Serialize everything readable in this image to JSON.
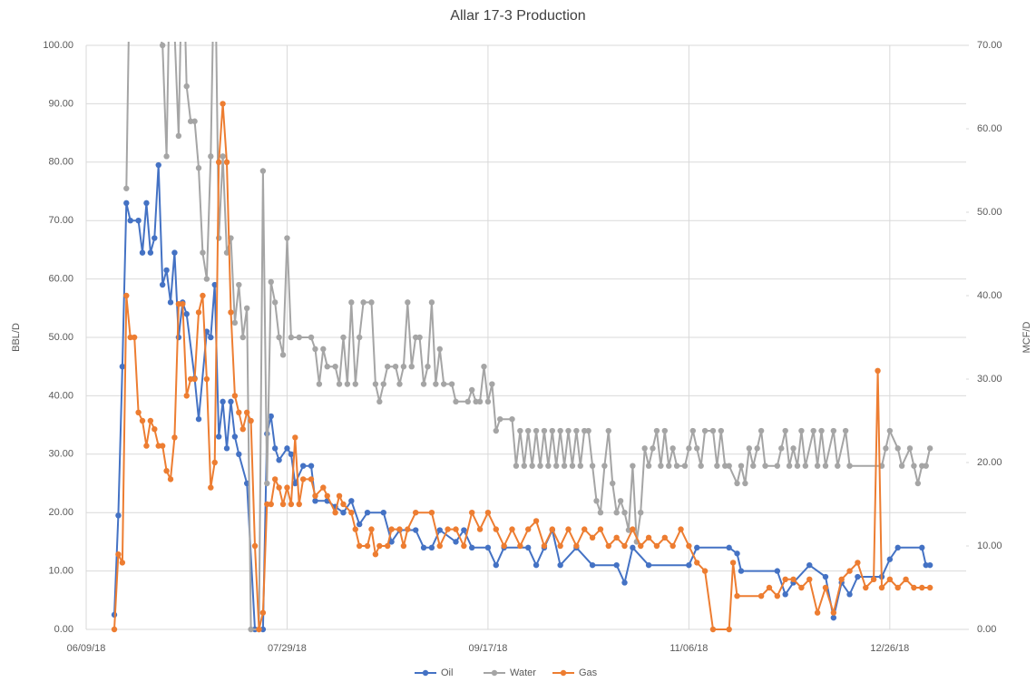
{
  "chart_data": {
    "type": "line",
    "title": "Allar 17-3 Production",
    "ylabel": "BBL/D",
    "y2label": "MCF/D",
    "xlim": [
      "06/09/18",
      "01/14/19"
    ],
    "xticks": [
      "06/09/18",
      "07/29/18",
      "09/17/18",
      "11/06/18",
      "12/26/18"
    ],
    "ylim": [
      0,
      100
    ],
    "yticks": [
      {
        "value": 0,
        "label": "0.00"
      },
      {
        "value": 10,
        "label": "10.00"
      },
      {
        "value": 20,
        "label": "20.00"
      },
      {
        "value": 30,
        "label": "30.00"
      },
      {
        "value": 40,
        "label": "40.00"
      },
      {
        "value": 50,
        "label": "50.00"
      },
      {
        "value": 60,
        "label": "60.00"
      },
      {
        "value": 70,
        "label": "70.00"
      },
      {
        "value": 80,
        "label": "80.00"
      },
      {
        "value": 90,
        "label": "90.00"
      },
      {
        "value": 100,
        "label": "100.00"
      }
    ],
    "y2lim": [
      0,
      70
    ],
    "y2ticks": [
      {
        "value": 0,
        "label": "0.00"
      },
      {
        "value": 10,
        "label": "10.00"
      },
      {
        "value": 20,
        "label": "20.00"
      },
      {
        "value": 30,
        "label": "30.00"
      },
      {
        "value": 40,
        "label": "40.00"
      },
      {
        "value": 50,
        "label": "50.00"
      },
      {
        "value": 60,
        "label": "60.00"
      },
      {
        "value": 70,
        "label": "70.00"
      }
    ],
    "grid": true,
    "legend": "bottom",
    "series": [
      {
        "name": "Oil",
        "color": "#4472c4",
        "x": [
          "06/16/18",
          "06/17/18",
          "06/18/18",
          "06/19/18",
          "06/20/18",
          "06/22/18",
          "06/23/18",
          "06/24/18",
          "06/25/18",
          "06/26/18",
          "06/27/18",
          "06/28/18",
          "06/29/18",
          "06/30/18",
          "07/01/18",
          "07/02/18",
          "07/03/18",
          "07/04/18",
          "07/06/18",
          "07/07/18",
          "07/09/18",
          "07/10/18",
          "07/11/18",
          "07/12/18",
          "07/13/18",
          "07/14/18",
          "07/15/18",
          "07/16/18",
          "07/17/18",
          "07/19/18",
          "07/21/18",
          "07/23/18",
          "07/24/18",
          "07/25/18",
          "07/26/18",
          "07/27/18",
          "07/29/18",
          "07/30/18",
          "07/31/18",
          "08/02/18",
          "08/04/18",
          "08/05/18",
          "08/08/18",
          "08/10/18",
          "08/12/18",
          "08/14/18",
          "08/16/18",
          "08/18/18",
          "08/22/18",
          "08/24/18",
          "08/26/18",
          "08/30/18",
          "09/01/18",
          "09/03/18",
          "09/05/18",
          "09/09/18",
          "09/11/18",
          "09/13/18",
          "09/17/18",
          "09/19/18",
          "09/21/18",
          "09/27/18",
          "09/29/18",
          "10/01/18",
          "10/03/18",
          "10/05/18",
          "10/09/18",
          "10/13/18",
          "10/19/18",
          "10/21/18",
          "10/23/18",
          "10/27/18",
          "11/06/18",
          "11/08/18",
          "11/16/18",
          "11/18/18",
          "11/19/18",
          "11/28/18",
          "11/30/18",
          "12/02/18",
          "12/06/18",
          "12/10/18",
          "12/12/18",
          "12/14/18",
          "12/16/18",
          "12/18/18",
          "12/24/18",
          "12/26/18",
          "12/28/18",
          "01/03/19",
          "01/04/19",
          "01/05/19"
        ],
        "values": [
          2.5,
          19.5,
          45,
          73,
          70,
          70,
          64.5,
          73,
          64.5,
          67,
          79.5,
          59,
          61.5,
          56,
          64.5,
          50,
          56,
          54,
          43,
          36,
          51,
          50,
          59,
          33,
          39,
          31,
          39,
          33,
          30,
          25,
          0,
          0,
          33.5,
          36.5,
          31,
          29,
          31,
          30,
          25,
          28,
          28,
          22,
          22,
          21,
          20,
          22,
          18,
          20,
          20,
          15,
          17,
          17,
          14,
          14,
          17,
          15,
          17,
          14,
          14,
          11,
          14,
          14,
          11,
          14,
          17,
          11,
          14,
          11,
          11,
          8,
          14,
          11,
          11,
          14,
          14,
          13,
          10,
          10,
          6,
          8,
          11,
          9,
          2,
          8,
          6,
          9,
          9,
          12,
          14,
          14,
          11,
          11
        ]
      },
      {
        "name": "Water",
        "color": "#a5a5a5",
        "x": [
          "06/19/18",
          "06/20/18",
          "06/28/18",
          "06/29/18",
          "06/30/18",
          "07/02/18",
          "07/03/18",
          "07/04/18",
          "07/05/18",
          "07/06/18",
          "07/07/18",
          "07/08/18",
          "07/09/18",
          "07/10/18",
          "07/11/18",
          "07/12/18",
          "07/13/18",
          "07/14/18",
          "07/15/18",
          "07/16/18",
          "07/17/18",
          "07/18/18",
          "07/19/18",
          "07/20/18",
          "07/22/18",
          "07/23/18",
          "07/24/18",
          "07/25/18",
          "07/26/18",
          "07/27/18",
          "07/28/18",
          "07/29/18",
          "07/30/18",
          "08/01/18",
          "08/04/18",
          "08/05/18",
          "08/06/18",
          "08/07/18",
          "08/08/18",
          "08/10/18",
          "08/11/18",
          "08/12/18",
          "08/13/18",
          "08/14/18",
          "08/15/18",
          "08/16/18",
          "08/17/18",
          "08/19/18",
          "08/20/18",
          "08/21/18",
          "08/22/18",
          "08/23/18",
          "08/25/18",
          "08/26/18",
          "08/27/18",
          "08/28/18",
          "08/29/18",
          "08/30/18",
          "08/31/18",
          "09/01/18",
          "09/02/18",
          "09/03/18",
          "09/04/18",
          "09/05/18",
          "09/06/18",
          "09/08/18",
          "09/09/18",
          "09/12/18",
          "09/13/18",
          "09/14/18",
          "09/15/18",
          "09/16/18",
          "09/17/18",
          "09/18/18",
          "09/19/18",
          "09/20/18",
          "09/23/18",
          "09/24/18",
          "09/25/18",
          "09/26/18",
          "09/27/18",
          "09/28/18",
          "09/29/18",
          "09/30/18",
          "10/01/18",
          "10/02/18",
          "10/03/18",
          "10/04/18",
          "10/05/18",
          "10/06/18",
          "10/07/18",
          "10/08/18",
          "10/09/18",
          "10/10/18",
          "10/11/18",
          "10/12/18",
          "10/13/18",
          "10/14/18",
          "10/15/18",
          "10/16/18",
          "10/17/18",
          "10/18/18",
          "10/19/18",
          "10/20/18",
          "10/21/18",
          "10/22/18",
          "10/23/18",
          "10/24/18",
          "10/25/18",
          "10/26/18",
          "10/27/18",
          "10/28/18",
          "10/29/18",
          "10/30/18",
          "10/31/18",
          "11/01/18",
          "11/02/18",
          "11/03/18",
          "11/05/18",
          "11/06/18",
          "11/07/18",
          "11/08/18",
          "11/09/18",
          "11/10/18",
          "11/12/18",
          "11/13/18",
          "11/14/18",
          "11/15/18",
          "11/16/18",
          "11/18/18",
          "11/19/18",
          "11/20/18",
          "11/21/18",
          "11/22/18",
          "11/23/18",
          "11/24/18",
          "11/25/18",
          "11/28/18",
          "11/29/18",
          "11/30/18",
          "12/01/18",
          "12/02/18",
          "12/03/18",
          "12/04/18",
          "12/05/18",
          "12/07/18",
          "12/08/18",
          "12/09/18",
          "12/10/18",
          "12/12/18",
          "12/13/18",
          "12/15/18",
          "12/16/18",
          "12/24/18",
          "12/25/18",
          "12/26/18",
          "12/28/18",
          "12/29/18",
          "12/31/18",
          "01/01/19",
          "01/02/19",
          "01/03/19",
          "01/04/19",
          "01/05/19"
        ],
        "values": [
          75.5,
          120,
          100,
          81,
          120,
          84.5,
          120,
          93,
          87,
          87,
          79,
          64.5,
          60,
          81,
          120,
          67,
          81,
          64.5,
          67,
          52.5,
          59,
          50,
          55,
          0,
          0,
          78.5,
          25,
          59.5,
          56,
          50,
          47,
          67,
          50,
          50,
          50,
          48,
          42,
          48,
          45,
          45,
          42,
          50,
          42,
          56,
          42,
          50,
          56,
          56,
          42,
          39,
          42,
          45,
          45,
          42,
          45,
          56,
          45,
          50,
          50,
          42,
          45,
          56,
          42,
          48,
          42,
          42,
          39,
          39,
          41,
          39,
          39,
          45,
          39,
          42,
          34,
          36,
          36,
          28,
          34,
          28,
          34,
          28,
          34,
          28,
          34,
          28,
          34,
          28,
          34,
          28,
          34,
          28,
          34,
          28,
          34,
          34,
          28,
          22,
          20,
          28,
          34,
          25,
          20,
          22,
          20,
          17,
          28,
          15,
          20,
          31,
          28,
          31,
          34,
          28,
          34,
          28,
          31,
          28,
          28,
          31,
          34,
          31,
          28,
          34,
          34,
          28,
          34,
          28,
          28,
          25,
          28,
          25,
          31,
          28,
          31,
          34,
          28,
          28,
          31,
          34,
          28,
          31,
          28,
          34,
          28,
          34,
          28,
          34,
          28,
          34,
          28,
          34,
          28,
          28,
          31,
          34,
          31,
          28,
          31,
          28,
          25,
          28,
          28,
          31
        ]
      },
      {
        "name": "Gas",
        "color": "#ed7d31",
        "axis": "y2",
        "x": [
          "06/16/18",
          "06/17/18",
          "06/18/18",
          "06/19/18",
          "06/20/18",
          "06/21/18",
          "06/22/18",
          "06/23/18",
          "06/24/18",
          "06/25/18",
          "06/26/18",
          "06/27/18",
          "06/28/18",
          "06/29/18",
          "06/30/18",
          "07/01/18",
          "07/02/18",
          "07/03/18",
          "07/04/18",
          "07/05/18",
          "07/06/18",
          "07/07/18",
          "07/08/18",
          "07/09/18",
          "07/10/18",
          "07/11/18",
          "07/12/18",
          "07/13/18",
          "07/14/18",
          "07/15/18",
          "07/16/18",
          "07/17/18",
          "07/18/18",
          "07/19/18",
          "07/20/18",
          "07/21/18",
          "07/22/18",
          "07/23/18",
          "07/24/18",
          "07/25/18",
          "07/26/18",
          "07/27/18",
          "07/28/18",
          "07/29/18",
          "07/30/18",
          "07/31/18",
          "08/01/18",
          "08/02/18",
          "08/04/18",
          "08/05/18",
          "08/07/18",
          "08/08/18",
          "08/10/18",
          "08/11/18",
          "08/12/18",
          "08/14/18",
          "08/15/18",
          "08/16/18",
          "08/18/18",
          "08/19/18",
          "08/20/18",
          "08/21/18",
          "08/23/18",
          "08/24/18",
          "08/26/18",
          "08/27/18",
          "08/28/18",
          "08/30/18",
          "09/03/18",
          "09/05/18",
          "09/07/18",
          "09/09/18",
          "09/11/18",
          "09/13/18",
          "09/15/18",
          "09/17/18",
          "09/19/18",
          "09/21/18",
          "09/23/18",
          "09/25/18",
          "09/27/18",
          "09/29/18",
          "10/01/18",
          "10/03/18",
          "10/05/18",
          "10/07/18",
          "10/09/18",
          "10/11/18",
          "10/13/18",
          "10/15/18",
          "10/17/18",
          "10/19/18",
          "10/21/18",
          "10/23/18",
          "10/25/18",
          "10/27/18",
          "10/29/18",
          "10/31/18",
          "11/02/18",
          "11/04/18",
          "11/06/18",
          "11/08/18",
          "11/10/18",
          "11/12/18",
          "11/16/18",
          "11/17/18",
          "11/18/18",
          "11/24/18",
          "11/26/18",
          "11/28/18",
          "11/30/18",
          "12/02/18",
          "12/04/18",
          "12/06/18",
          "12/08/18",
          "12/10/18",
          "12/12/18",
          "12/14/18",
          "12/16/18",
          "12/18/18",
          "12/20/18",
          "12/22/18",
          "12/23/18",
          "12/24/18",
          "12/26/18",
          "12/28/18",
          "12/30/18",
          "01/01/19",
          "01/03/19",
          "01/05/19"
        ],
        "values": [
          0,
          9,
          8,
          40,
          35,
          35,
          26,
          25,
          22,
          25,
          24,
          22,
          22,
          19,
          18,
          23,
          39,
          39,
          28,
          30,
          30,
          38,
          40,
          30,
          17,
          20,
          56,
          63,
          56,
          38,
          28,
          26,
          24,
          26,
          25,
          10,
          0,
          2,
          15,
          15,
          18,
          17,
          15,
          17,
          15,
          23,
          15,
          18,
          18,
          16,
          17,
          16,
          14,
          16,
          15,
          14,
          12,
          10,
          10,
          12,
          9,
          10,
          10,
          12,
          12,
          10,
          12,
          14,
          14,
          10,
          12,
          12,
          10,
          14,
          12,
          14,
          12,
          10,
          12,
          10,
          12,
          13,
          10,
          12,
          10,
          12,
          10,
          12,
          11,
          12,
          10,
          11,
          10,
          12,
          10,
          11,
          10,
          11,
          10,
          12,
          10,
          8,
          7,
          0,
          0,
          8,
          4,
          4,
          5,
          4,
          6,
          6,
          5,
          6,
          2,
          5,
          2,
          6,
          7,
          8,
          5,
          6,
          31,
          5,
          6,
          5,
          6,
          5,
          5,
          5
        ]
      }
    ]
  }
}
